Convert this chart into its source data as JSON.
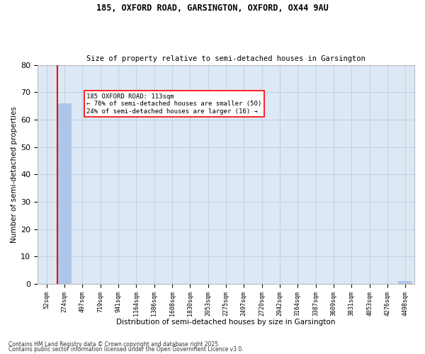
{
  "title1": "185, OXFORD ROAD, GARSINGTON, OXFORD, OX44 9AU",
  "title2": "Size of property relative to semi-detached houses in Garsington",
  "xlabel": "Distribution of semi-detached houses by size in Garsington",
  "ylabel": "Number of semi-detached properties",
  "categories": [
    "52sqm",
    "274sqm",
    "497sqm",
    "719sqm",
    "941sqm",
    "1164sqm",
    "1386sqm",
    "1608sqm",
    "1830sqm",
    "2053sqm",
    "2275sqm",
    "2497sqm",
    "2720sqm",
    "2942sqm",
    "3164sqm",
    "3387sqm",
    "3609sqm",
    "3831sqm",
    "4053sqm",
    "4276sqm",
    "4498sqm"
  ],
  "values": [
    0,
    66,
    0,
    0,
    0,
    0,
    0,
    0,
    0,
    0,
    0,
    0,
    0,
    0,
    0,
    0,
    0,
    0,
    0,
    0,
    1
  ],
  "bar_color": "#aec6e8",
  "ylim": [
    0,
    80
  ],
  "yticks": [
    0,
    10,
    20,
    30,
    40,
    50,
    60,
    70,
    80
  ],
  "grid_color": "#c0d4e8",
  "bg_color": "#dce8f4",
  "annotation_text": "185 OXFORD ROAD: 113sqm\n← 76% of semi-detached houses are smaller (50)\n24% of semi-detached houses are larger (16) →",
  "red_line_index": 1,
  "footnote1": "Contains HM Land Registry data © Crown copyright and database right 2025.",
  "footnote2": "Contains public sector information licensed under the Open Government Licence v3.0."
}
